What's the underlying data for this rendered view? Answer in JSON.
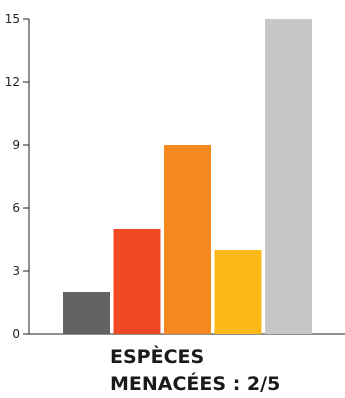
{
  "chart_data": {
    "type": "bar",
    "categories": [
      "",
      "",
      "",
      "",
      ""
    ],
    "values": [
      2,
      5,
      9,
      4,
      15
    ],
    "colors": [
      "#636363",
      "#ef4a24",
      "#f7871f",
      "#fbb919",
      "#c6c7c9"
    ],
    "ylim": [
      0,
      15
    ],
    "yticks": [
      0,
      3,
      6,
      9,
      12,
      15
    ],
    "grid": false,
    "title": "",
    "xlabel": "",
    "ylabel": ""
  },
  "caption": {
    "line1": "ESPÈCES",
    "line2": "MENACÉES : 2/5"
  }
}
